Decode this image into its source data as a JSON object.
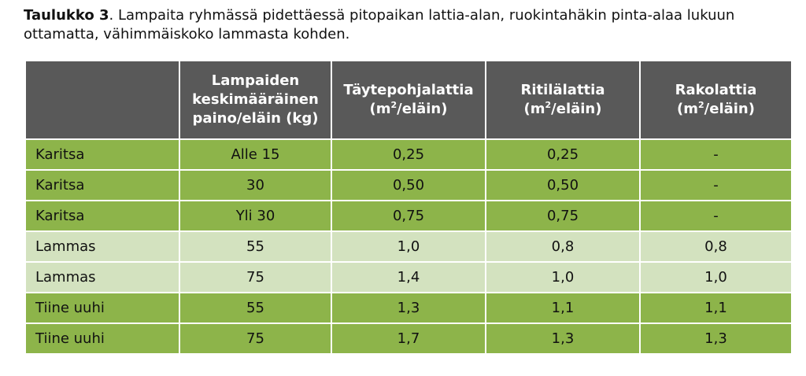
{
  "caption": {
    "bold": "Taulukko 3",
    "text": ". Lampaita ryhmässä pidettäessä pitopaikan lattia-alan, ruokintahäkin pinta-alaa lukuun ottamatta, vähimmäiskoko lammasta kohden."
  },
  "table": {
    "headers": {
      "col0": "",
      "col1_line1": "Lampaiden",
      "col1_line2": "keskimääräinen",
      "col1_line3": "paino/eläin (kg)",
      "col2_title": "Täytepohjalattia",
      "col3_title": "Ritilälattia",
      "col4_title": "Rakolattia",
      "unit_open": "(m",
      "unit_sup": "2",
      "unit_close": "/eläin)"
    },
    "rows": [
      {
        "name": "Karitsa",
        "weight": "Alle 15",
        "tayte": "0,25",
        "ritila": "0,25",
        "rako": "-",
        "shade": "dark"
      },
      {
        "name": "Karitsa",
        "weight": "30",
        "tayte": "0,50",
        "ritila": "0,50",
        "rako": "-",
        "shade": "dark"
      },
      {
        "name": "Karitsa",
        "weight": "Yli 30",
        "tayte": "0,75",
        "ritila": "0,75",
        "rako": "-",
        "shade": "dark"
      },
      {
        "name": "Lammas",
        "weight": "55",
        "tayte": "1,0",
        "ritila": "0,8",
        "rako": "0,8",
        "shade": "light"
      },
      {
        "name": "Lammas",
        "weight": "75",
        "tayte": "1,4",
        "ritila": "1,0",
        "rako": "1,0",
        "shade": "light"
      },
      {
        "name": "Tiine uuhi",
        "weight": "55",
        "tayte": "1,3",
        "ritila": "1,1",
        "rako": "1,1",
        "shade": "dark"
      },
      {
        "name": "Tiine uuhi",
        "weight": "75",
        "tayte": "1,7",
        "ritila": "1,3",
        "rako": "1,3",
        "shade": "dark"
      }
    ]
  },
  "colors": {
    "header_bg": "#595959",
    "row_dark": "#8db44a",
    "row_light": "#d3e2bf"
  }
}
